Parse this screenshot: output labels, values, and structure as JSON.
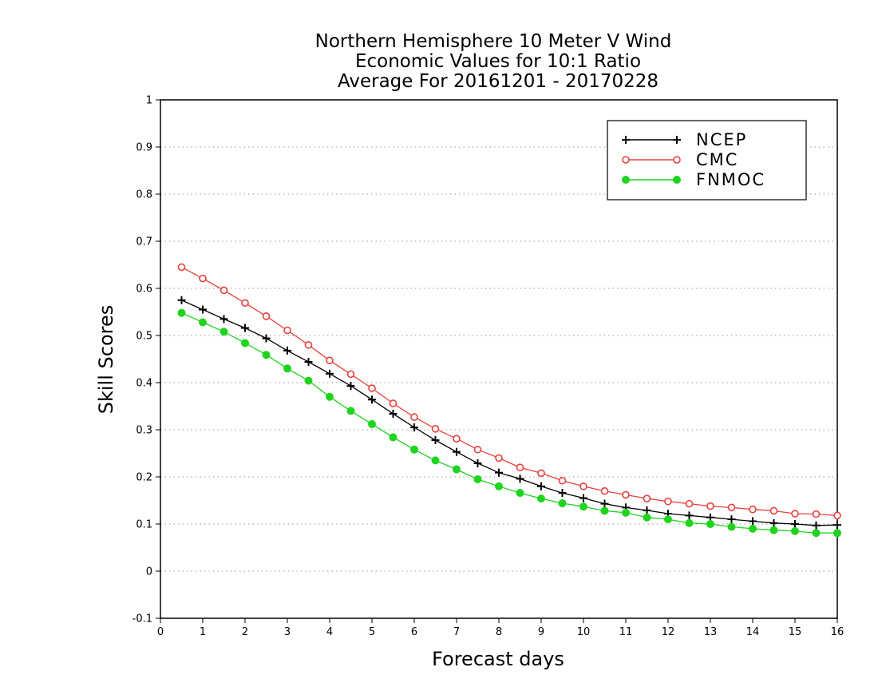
{
  "chart_data": {
    "type": "line",
    "title": [
      "Northern Hemisphere 10 Meter V Wind",
      "Economic Values for 10:1 Ratio",
      "Average For 20161201 - 20170228"
    ],
    "xlabel": "Forecast days",
    "ylabel": "Skill Scores",
    "xlim": [
      0,
      16
    ],
    "ylim": [
      -0.1,
      1
    ],
    "xticks": [
      "0",
      "1",
      "2",
      "3",
      "4",
      "5",
      "6",
      "7",
      "8",
      "9",
      "10",
      "11",
      "12",
      "13",
      "14",
      "15",
      "16"
    ],
    "yticks": [
      "-0.1",
      "0",
      "0.1",
      "0.2",
      "0.3",
      "0.4",
      "0.5",
      "0.6",
      "0.7",
      "0.8",
      "0.9",
      "1"
    ],
    "grid": "horizontal-dotted",
    "legend_position": "top-right",
    "x": [
      0.5,
      1,
      1.5,
      2,
      2.5,
      3,
      3.5,
      4,
      4.5,
      5,
      5.5,
      6,
      6.5,
      7,
      7.5,
      8,
      8.5,
      9,
      9.5,
      10,
      10.5,
      11,
      11.5,
      12,
      12.5,
      13,
      13.5,
      14,
      14.5,
      15,
      15.5,
      16
    ],
    "series": [
      {
        "name": "NCEP",
        "color": "#000000",
        "marker": "plus",
        "values": [
          0.575,
          0.555,
          0.535,
          0.516,
          0.494,
          0.468,
          0.444,
          0.419,
          0.393,
          0.364,
          0.334,
          0.305,
          0.278,
          0.253,
          0.229,
          0.209,
          0.196,
          0.18,
          0.166,
          0.155,
          0.143,
          0.135,
          0.129,
          0.122,
          0.118,
          0.114,
          0.11,
          0.106,
          0.102,
          0.1,
          0.097,
          0.098
        ]
      },
      {
        "name": "CMC",
        "color": "#e8403c",
        "marker": "open-circle",
        "values": [
          0.645,
          0.621,
          0.596,
          0.569,
          0.541,
          0.511,
          0.48,
          0.447,
          0.418,
          0.388,
          0.356,
          0.327,
          0.302,
          0.281,
          0.258,
          0.24,
          0.22,
          0.208,
          0.192,
          0.18,
          0.17,
          0.162,
          0.154,
          0.148,
          0.143,
          0.138,
          0.135,
          0.131,
          0.128,
          0.122,
          0.121,
          0.118
        ]
      },
      {
        "name": "FNMOC",
        "color": "#1ed41e",
        "marker": "filled-circle",
        "values": [
          0.548,
          0.528,
          0.508,
          0.484,
          0.459,
          0.43,
          0.404,
          0.37,
          0.34,
          0.312,
          0.284,
          0.258,
          0.235,
          0.216,
          0.195,
          0.18,
          0.166,
          0.154,
          0.144,
          0.137,
          0.128,
          0.124,
          0.114,
          0.11,
          0.102,
          0.1,
          0.094,
          0.09,
          0.087,
          0.085,
          0.081,
          0.081
        ]
      }
    ]
  }
}
